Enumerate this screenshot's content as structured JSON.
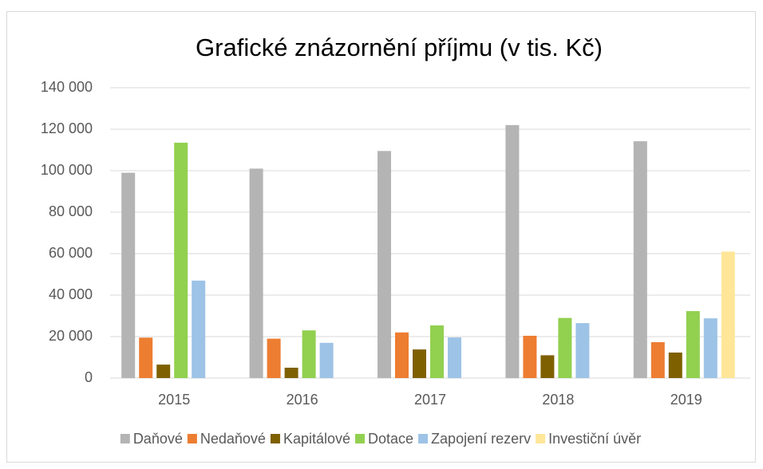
{
  "chart_data": {
    "type": "bar",
    "title": "Grafické znázornění příjmu (v tis. Kč)",
    "categories": [
      "2015",
      "2016",
      "2017",
      "2018",
      "2019"
    ],
    "series": [
      {
        "name": "Daňové",
        "color": "#b4b4b4",
        "values": [
          99000,
          101000,
          109500,
          122000,
          114200
        ]
      },
      {
        "name": "Nedaňové",
        "color": "#ed7d31",
        "values": [
          19500,
          19000,
          22000,
          20400,
          17300
        ]
      },
      {
        "name": "Kapitálové",
        "color": "#7f6000",
        "values": [
          6500,
          5000,
          13800,
          11000,
          12300
        ]
      },
      {
        "name": "Dotace",
        "color": "#92d050",
        "values": [
          113500,
          23000,
          25400,
          29000,
          32300
        ]
      },
      {
        "name": "Zapojení rezerv",
        "color": "#9dc3e6",
        "values": [
          47000,
          17000,
          19600,
          26500,
          28800
        ]
      },
      {
        "name": "Investiční úvěr",
        "color": "#ffe699",
        "values": [
          null,
          null,
          null,
          null,
          61000
        ]
      }
    ],
    "ylim": [
      0,
      140000
    ],
    "yticks": [
      {
        "value": 0,
        "label": "0"
      },
      {
        "value": 20000,
        "label": "20 000"
      },
      {
        "value": 40000,
        "label": "40 000"
      },
      {
        "value": 60000,
        "label": "60 000"
      },
      {
        "value": 80000,
        "label": "80 000"
      },
      {
        "value": 100000,
        "label": "100 000"
      },
      {
        "value": 120000,
        "label": "120 000"
      },
      {
        "value": 140000,
        "label": "140 000"
      }
    ],
    "grid": true,
    "legend": "bottom"
  }
}
